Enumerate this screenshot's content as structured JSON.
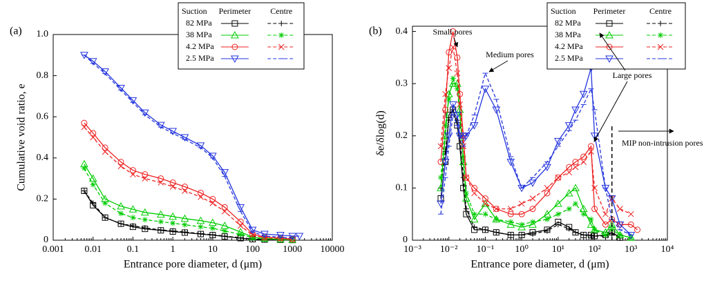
{
  "chart_data": [
    {
      "type": "line",
      "panel_label": "(a)",
      "xlabel": "Entrance pore diameter, d (μm)",
      "ylabel": "Cumulative void ratio, e",
      "log_x": true,
      "xlim": [
        0.001,
        10000
      ],
      "xticks": [
        0.001,
        0.01,
        0.1,
        1,
        10,
        100,
        1000,
        10000
      ],
      "ylim": [
        0,
        1.0
      ],
      "yticks": [
        0,
        0.2,
        0.4,
        0.6,
        0.8,
        {
          "value": 1.0,
          "label": "1.0"
        }
      ],
      "legend_columns": [
        "Suction",
        "Perimeter",
        "Centre"
      ],
      "x": [
        0.006,
        0.01,
        0.02,
        0.05,
        0.1,
        0.2,
        0.5,
        1,
        2,
        5,
        10,
        20,
        50,
        100,
        200,
        500,
        1000,
        1500
      ],
      "series": [
        {
          "name": "82 MPa",
          "color": "#000000",
          "perimeter": {
            "marker": "square",
            "values": [
              0.24,
              0.17,
              0.11,
              0.08,
              0.065,
              0.055,
              0.048,
              0.042,
              0.037,
              0.03,
              0.025,
              0.018,
              0.01,
              0.005,
              0.003,
              0.002,
              0.001,
              null
            ]
          },
          "centre": {
            "marker": "plus",
            "values": [
              0.24,
              0.18,
              0.11,
              0.08,
              0.07,
              0.06,
              0.05,
              0.045,
              0.04,
              0.032,
              0.027,
              0.02,
              0.012,
              0.006,
              0.003,
              0.002,
              null,
              null
            ]
          }
        },
        {
          "name": "38 MPa",
          "color": "#00cc00",
          "perimeter": {
            "marker": "triangle",
            "values": [
              0.37,
              0.3,
              0.2,
              0.165,
              0.15,
              0.135,
              0.125,
              0.115,
              0.105,
              0.095,
              0.085,
              0.07,
              0.04,
              0.015,
              0.008,
              0.004,
              0.002,
              null
            ]
          },
          "centre": {
            "marker": "star",
            "values": [
              0.35,
              0.27,
              0.18,
              0.13,
              0.11,
              0.1,
              0.09,
              0.083,
              0.075,
              0.065,
              0.058,
              0.045,
              0.028,
              0.012,
              0.006,
              0.004,
              0.002,
              null
            ]
          }
        },
        {
          "name": "4.2 MPa",
          "color": "#ee2222",
          "perimeter": {
            "marker": "circle",
            "values": [
              0.57,
              0.52,
              0.45,
              0.38,
              0.34,
              0.32,
              0.3,
              0.28,
              0.26,
              0.23,
              0.2,
              0.16,
              0.09,
              0.03,
              0.015,
              0.01,
              0.005,
              null
            ]
          },
          "centre": {
            "marker": "cross",
            "values": [
              0.55,
              0.5,
              0.43,
              0.36,
              0.32,
              0.3,
              0.28,
              0.26,
              0.24,
              0.21,
              0.18,
              0.14,
              0.07,
              0.025,
              0.012,
              0.008,
              0.004,
              null
            ]
          }
        },
        {
          "name": "2.5 MPa",
          "color": "#2233dd",
          "perimeter": {
            "marker": "down-triangle",
            "values": [
              0.9,
              0.87,
              0.82,
              0.74,
              0.68,
              0.62,
              0.56,
              0.53,
              0.5,
              0.46,
              0.41,
              0.33,
              0.16,
              0.05,
              0.03,
              0.025,
              0.02,
              0.02
            ]
          },
          "centre": {
            "marker": "dash",
            "values": [
              0.9,
              0.86,
              0.81,
              0.73,
              0.67,
              0.61,
              0.55,
              0.52,
              0.49,
              0.45,
              0.4,
              0.31,
              0.14,
              0.04,
              0.02,
              0.015,
              0.01,
              null
            ]
          }
        }
      ]
    },
    {
      "type": "line",
      "panel_label": "(b)",
      "xlabel": "Entrance pore diameter, d (μm)",
      "ylabel": "δe/δlog(d)",
      "log_x": true,
      "xlim": [
        0.001,
        10000
      ],
      "xticks": [
        {
          "value": 0.001,
          "label": "10⁻³"
        },
        {
          "value": 0.01,
          "label": "10⁻²"
        },
        {
          "value": 0.1,
          "label": "10⁻¹"
        },
        {
          "value": 1,
          "label": "10⁰"
        },
        {
          "value": 10,
          "label": "10¹"
        },
        {
          "value": 100,
          "label": "10²"
        },
        {
          "value": 1000,
          "label": "10³"
        },
        {
          "value": 10000,
          "label": "10⁴"
        }
      ],
      "ylim": [
        0,
        0.41
      ],
      "yticks": [
        0,
        0.1,
        0.2,
        0.3,
        0.4
      ],
      "legend_columns": [
        "Suction",
        "Perimeter",
        "Centre"
      ],
      "annotations": [
        "Small pores",
        "Medium pores",
        "Large pores",
        "MIP non-intrusion pores"
      ],
      "threshold_x": 300,
      "x": [
        0.006,
        0.008,
        0.01,
        0.013,
        0.017,
        0.02,
        0.025,
        0.03,
        0.05,
        0.1,
        0.2,
        0.5,
        1,
        2,
        5,
        10,
        20,
        30,
        50,
        80,
        100,
        200,
        300,
        500,
        1000,
        1500
      ],
      "series": [
        {
          "name": "82 MPa",
          "color": "#000000",
          "perimeter": {
            "marker": "square",
            "values": [
              0.08,
              0.15,
              0.24,
              0.25,
              0.22,
              0.18,
              0.1,
              0.05,
              0.02,
              0.02,
              0.015,
              0.01,
              0.01,
              0.015,
              0.02,
              0.035,
              0.025,
              0.015,
              0.01,
              0.01,
              0.008,
              0.01,
              0.015,
              0.005,
              null,
              null
            ]
          },
          "centre": {
            "marker": "plus",
            "values": [
              0.1,
              0.17,
              0.23,
              0.25,
              0.23,
              0.2,
              0.12,
              0.06,
              0.025,
              0.02,
              0.015,
              0.01,
              0.01,
              0.012,
              0.018,
              0.03,
              0.022,
              0.015,
              0.01,
              0.008,
              0.008,
              0.008,
              0.012,
              0.004,
              null,
              null
            ]
          }
        },
        {
          "name": "38 MPa",
          "color": "#00cc00",
          "perimeter": {
            "marker": "triangle",
            "values": [
              0.1,
              0.2,
              0.28,
              0.3,
              0.3,
              0.25,
              0.15,
              0.08,
              0.04,
              0.07,
              0.04,
              0.03,
              0.025,
              0.03,
              0.05,
              0.07,
              0.09,
              0.1,
              0.06,
              0.03,
              0.02,
              0.015,
              0.03,
              0.01,
              0.005,
              null
            ]
          },
          "centre": {
            "marker": "star",
            "values": [
              0.12,
              0.22,
              0.27,
              0.31,
              0.29,
              0.24,
              0.16,
              0.09,
              0.05,
              0.05,
              0.04,
              0.035,
              0.03,
              0.035,
              0.04,
              0.05,
              0.06,
              0.07,
              0.05,
              0.04,
              0.02,
              0.01,
              0.02,
              0.01,
              0.005,
              null
            ]
          }
        },
        {
          "name": "4.2 MPa",
          "color": "#ee2222",
          "perimeter": {
            "marker": "circle",
            "values": [
              0.15,
              0.25,
              0.36,
              0.4,
              0.35,
              0.28,
              0.2,
              0.12,
              0.1,
              0.08,
              0.06,
              0.05,
              0.05,
              0.06,
              0.09,
              0.12,
              0.14,
              0.15,
              0.16,
              0.18,
              0.06,
              0.03,
              0.04,
              0.03,
              0.03,
              0.02
            ]
          },
          "centre": {
            "marker": "cross",
            "values": [
              0.18,
              0.28,
              0.33,
              0.37,
              0.32,
              0.26,
              0.18,
              0.12,
              0.09,
              0.07,
              0.06,
              0.06,
              0.07,
              0.08,
              0.1,
              0.12,
              0.13,
              0.14,
              0.15,
              0.17,
              0.1,
              0.05,
              0.08,
              0.06,
              0.05,
              null
            ]
          }
        },
        {
          "name": "2.5 MPa",
          "color": "#2233dd",
          "perimeter": {
            "marker": "down-triangle",
            "values": [
              0.07,
              0.15,
              0.2,
              0.26,
              0.24,
              0.2,
              0.2,
              0.2,
              0.22,
              0.29,
              0.25,
              0.15,
              0.1,
              0.11,
              0.14,
              0.19,
              0.22,
              0.25,
              0.28,
              0.33,
              0.2,
              0.1,
              0.08,
              0.03,
              0.01,
              null
            ]
          },
          "centre": {
            "marker": "dash",
            "values": [
              0.05,
              0.12,
              0.18,
              0.24,
              0.22,
              0.2,
              0.18,
              0.2,
              0.24,
              0.32,
              0.27,
              0.16,
              0.1,
              0.12,
              0.15,
              0.18,
              0.21,
              0.23,
              0.26,
              0.29,
              0.25,
              0.1,
              0.04,
              0.02,
              0.01,
              null
            ]
          }
        }
      ]
    }
  ]
}
